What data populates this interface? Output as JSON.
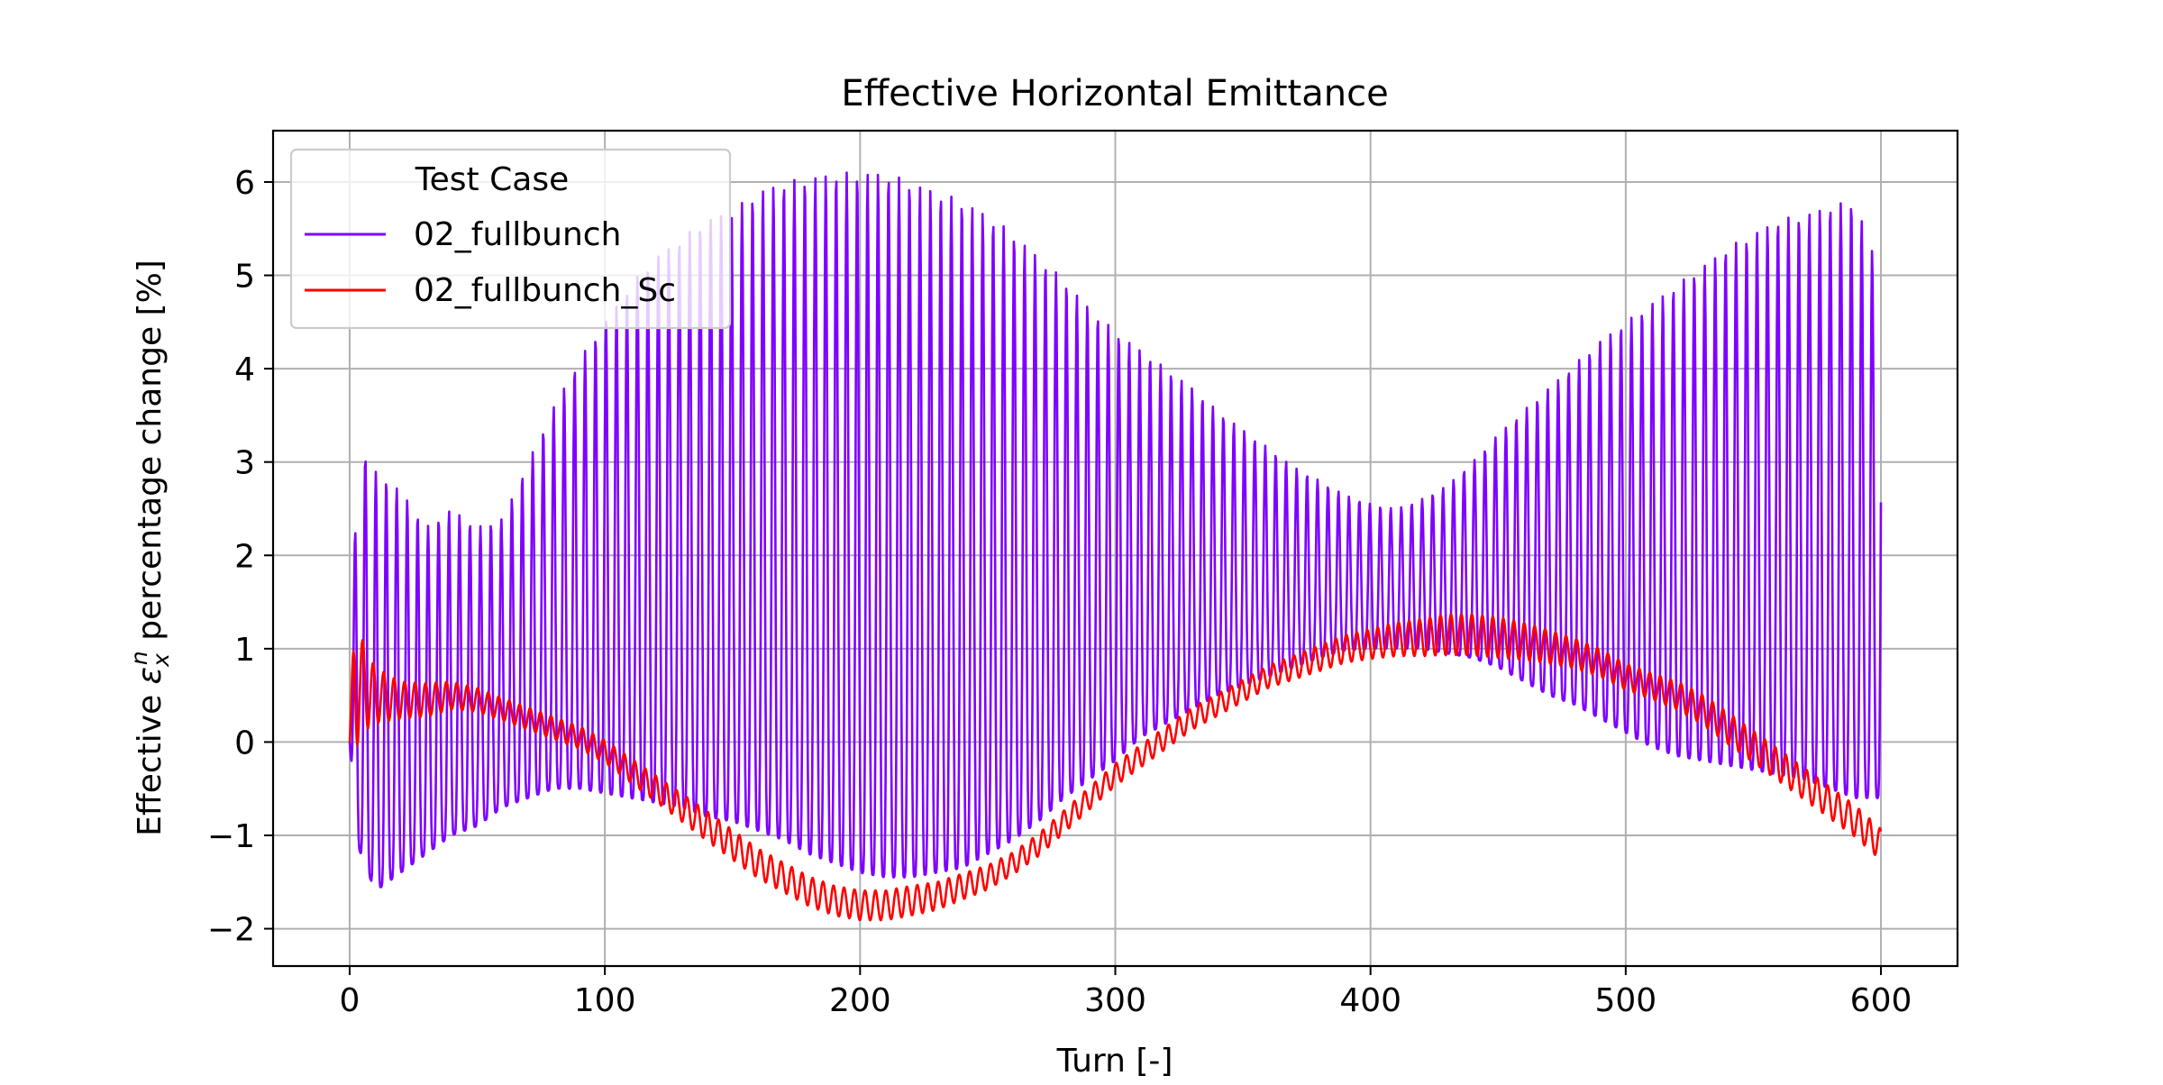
{
  "chart_data": {
    "type": "line",
    "title": "Effective Horizontal Emittance",
    "xlabel": "Turn [-]",
    "ylabel_prefix": "Effective ",
    "ylabel_symbol": "ε",
    "ylabel_sub": "x",
    "ylabel_sup": "n",
    "ylabel_suffix": " percentage change [%]",
    "xlim": [
      -30,
      630
    ],
    "ylim": [
      -2.4,
      6.55
    ],
    "xticks": [
      0,
      100,
      200,
      300,
      400,
      500,
      600
    ],
    "xtick_labels": [
      "0",
      "100",
      "200",
      "300",
      "400",
      "500",
      "600"
    ],
    "yticks": [
      -2,
      -1,
      0,
      1,
      2,
      3,
      4,
      5,
      6
    ],
    "ytick_labels": [
      "−2",
      "−1",
      "0",
      "1",
      "2",
      "3",
      "4",
      "5",
      "6"
    ],
    "grid": true,
    "legend": {
      "title": "Test Case",
      "placement": "top-left"
    },
    "series": [
      {
        "name": "02_fullbunch",
        "color": "#7f00ff",
        "oscillation_period_turns": 4.1,
        "envelope_turn": [
          0,
          3,
          10,
          20,
          30,
          40,
          50,
          60,
          70,
          80,
          90,
          100,
          110,
          120,
          130,
          140,
          150,
          160,
          170,
          180,
          190,
          200,
          210,
          220,
          230,
          240,
          250,
          260,
          270,
          280,
          290,
          300,
          310,
          320,
          330,
          340,
          350,
          360,
          370,
          380,
          390,
          400,
          410,
          420,
          430,
          440,
          450,
          460,
          470,
          480,
          490,
          500,
          510,
          520,
          530,
          540,
          550,
          560,
          570,
          580,
          590,
          600
        ],
        "envelope_upper": [
          0.0,
          3.2,
          2.9,
          2.7,
          2.3,
          2.5,
          2.3,
          2.4,
          3.0,
          3.6,
          4.1,
          4.5,
          4.9,
          5.2,
          5.4,
          5.6,
          5.7,
          5.9,
          6.0,
          6.05,
          6.1,
          6.1,
          6.1,
          6.0,
          5.9,
          5.8,
          5.65,
          5.45,
          5.2,
          4.95,
          4.65,
          4.4,
          4.2,
          4.0,
          3.8,
          3.55,
          3.35,
          3.15,
          2.95,
          2.8,
          2.65,
          2.55,
          2.5,
          2.6,
          2.75,
          3.0,
          3.3,
          3.55,
          3.8,
          4.05,
          4.3,
          4.5,
          4.7,
          4.9,
          5.1,
          5.3,
          5.45,
          5.6,
          5.65,
          5.75,
          5.8,
          5.0
        ],
        "envelope_lower": [
          0.0,
          -1.1,
          -1.6,
          -1.4,
          -1.2,
          -1.0,
          -0.9,
          -0.7,
          -0.6,
          -0.5,
          -0.5,
          -0.55,
          -0.6,
          -0.65,
          -0.7,
          -0.8,
          -0.85,
          -0.95,
          -1.05,
          -1.2,
          -1.3,
          -1.4,
          -1.45,
          -1.45,
          -1.4,
          -1.35,
          -1.2,
          -1.05,
          -0.85,
          -0.6,
          -0.4,
          -0.2,
          0.05,
          0.2,
          0.35,
          0.5,
          0.6,
          0.7,
          0.8,
          0.9,
          0.98,
          1.0,
          1.0,
          1.0,
          0.95,
          0.9,
          0.8,
          0.65,
          0.5,
          0.4,
          0.25,
          0.1,
          -0.05,
          -0.15,
          -0.2,
          -0.25,
          -0.3,
          -0.35,
          -0.4,
          -0.5,
          -0.6,
          -0.6
        ]
      },
      {
        "name": "02_fullbunch_Sc",
        "color": "#ff0000",
        "oscillation_period_turns": 4.1,
        "turn": [
          0,
          2,
          5,
          10,
          20,
          30,
          40,
          50,
          60,
          70,
          80,
          90,
          100,
          110,
          120,
          130,
          140,
          150,
          160,
          170,
          180,
          190,
          200,
          210,
          220,
          230,
          240,
          250,
          260,
          270,
          280,
          290,
          300,
          310,
          320,
          330,
          340,
          350,
          360,
          370,
          380,
          390,
          400,
          410,
          420,
          430,
          440,
          450,
          460,
          470,
          480,
          490,
          500,
          510,
          520,
          530,
          540,
          550,
          560,
          570,
          580,
          590,
          600
        ],
        "mean": [
          0.0,
          0.7,
          0.6,
          0.5,
          0.45,
          0.45,
          0.5,
          0.45,
          0.35,
          0.25,
          0.15,
          0.05,
          -0.1,
          -0.3,
          -0.5,
          -0.7,
          -0.9,
          -1.1,
          -1.3,
          -1.45,
          -1.6,
          -1.7,
          -1.75,
          -1.75,
          -1.7,
          -1.65,
          -1.55,
          -1.45,
          -1.3,
          -1.1,
          -0.85,
          -0.6,
          -0.35,
          -0.15,
          0.05,
          0.25,
          0.4,
          0.55,
          0.7,
          0.8,
          0.9,
          1.0,
          1.05,
          1.1,
          1.12,
          1.15,
          1.15,
          1.12,
          1.08,
          1.02,
          0.95,
          0.85,
          0.7,
          0.6,
          0.5,
          0.35,
          0.15,
          -0.05,
          -0.25,
          -0.45,
          -0.65,
          -0.85,
          -1.1
        ],
        "amplitude": [
          0.0,
          0.8,
          0.5,
          0.3,
          0.2,
          0.18,
          0.15,
          0.13,
          0.12,
          0.12,
          0.12,
          0.12,
          0.12,
          0.13,
          0.14,
          0.15,
          0.16,
          0.16,
          0.16,
          0.16,
          0.16,
          0.16,
          0.16,
          0.16,
          0.16,
          0.15,
          0.14,
          0.13,
          0.12,
          0.12,
          0.12,
          0.12,
          0.12,
          0.12,
          0.12,
          0.12,
          0.12,
          0.12,
          0.12,
          0.13,
          0.14,
          0.15,
          0.16,
          0.18,
          0.2,
          0.22,
          0.22,
          0.22,
          0.2,
          0.18,
          0.16,
          0.15,
          0.14,
          0.14,
          0.15,
          0.16,
          0.17,
          0.17,
          0.17,
          0.17,
          0.17,
          0.17,
          0.17
        ]
      }
    ]
  }
}
